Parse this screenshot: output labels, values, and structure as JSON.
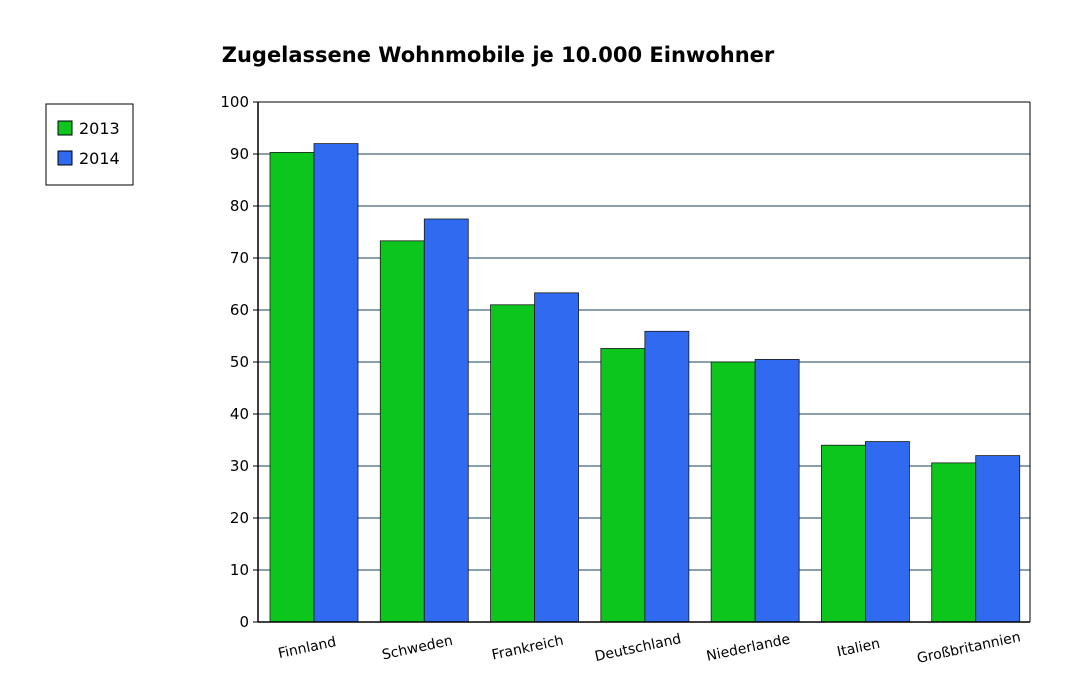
{
  "chart_data": {
    "type": "bar",
    "title": "Zugelassene Wohnmobile je 10.000 Einwohner",
    "xlabel": "",
    "ylabel": "",
    "ylim": [
      0,
      100
    ],
    "yticks": [
      0,
      10,
      20,
      30,
      40,
      50,
      60,
      70,
      80,
      90,
      100
    ],
    "grid": true,
    "legend_position": "top-left",
    "categories": [
      "Finnland",
      "Schweden",
      "Frankreich",
      "Deutschland",
      "Niederlande",
      "Italien",
      "Großbritannien"
    ],
    "series": [
      {
        "name": "2013",
        "color": "#0cc61e",
        "values": [
          90.3,
          73.3,
          61.0,
          52.6,
          50.0,
          34.0,
          30.6
        ]
      },
      {
        "name": "2014",
        "color": "#2f6af0",
        "values": [
          92.0,
          77.5,
          63.3,
          55.9,
          50.5,
          34.7,
          32.0
        ]
      }
    ]
  },
  "colors": {
    "grid": "#1a3f5c",
    "axis": "#000000",
    "bar_outline": "#1a1a1a"
  }
}
